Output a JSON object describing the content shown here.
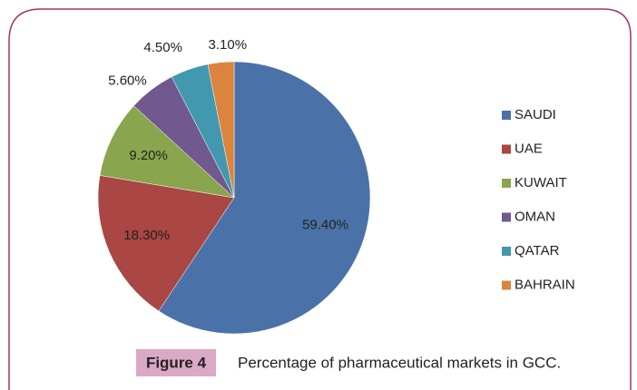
{
  "chart_data": {
    "type": "pie",
    "categories": [
      "SAUDI",
      "UAE",
      "KUWAIT",
      "OMAN",
      "QATAR",
      "BAHRAIN"
    ],
    "values": [
      59.4,
      18.3,
      9.2,
      5.6,
      4.5,
      3.1
    ],
    "value_labels": [
      "59.40%",
      "18.30%",
      "9.20%",
      "5.60%",
      "4.50%",
      "3.10%"
    ],
    "colors": [
      "#4a72a8",
      "#aa4643",
      "#89a54e",
      "#71588f",
      "#4198af",
      "#db843d"
    ],
    "legend": "right",
    "caption_label": "Figure 4",
    "caption": "Percentage of pharmaceutical markets in GCC."
  }
}
